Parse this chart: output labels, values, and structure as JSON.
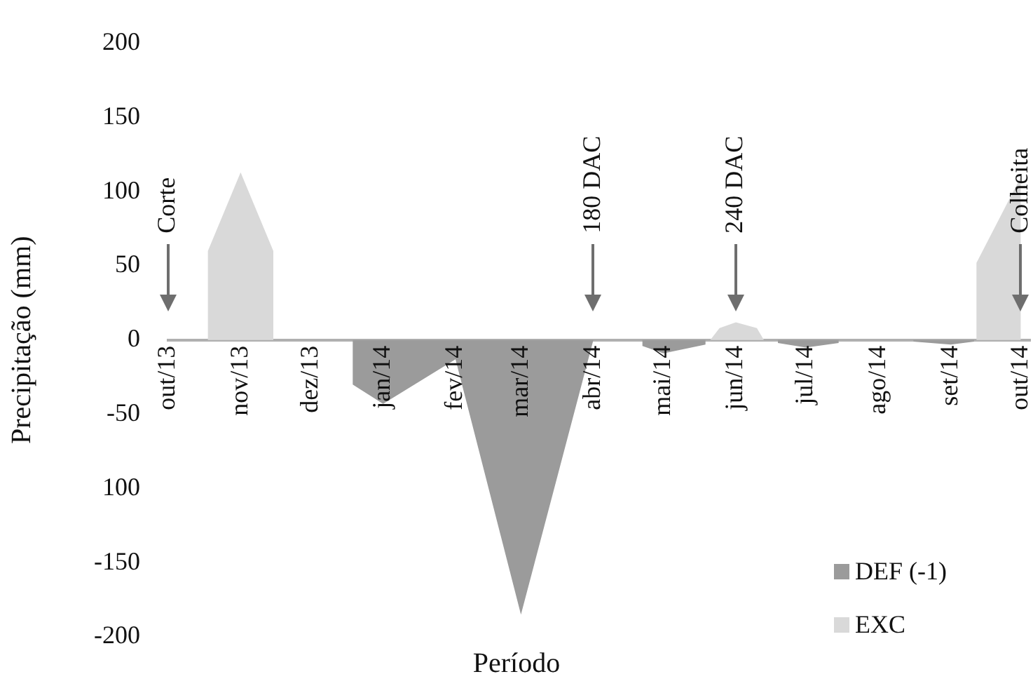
{
  "chart_data": {
    "type": "area",
    "xlabel": "Período",
    "ylabel": "Precipitação (mm)",
    "xlim": [
      "2013-10-01",
      "2014-10-05"
    ],
    "xticks": [
      {
        "value": "2013-10-01",
        "label": "out/13"
      },
      {
        "value": "2013-11-01",
        "label": "nov/13"
      },
      {
        "value": "2013-12-01",
        "label": "dez/13"
      },
      {
        "value": "2014-01-01",
        "label": "jan/14"
      },
      {
        "value": "2014-02-01",
        "label": "fev/14"
      },
      {
        "value": "2014-03-01",
        "label": "mar/14"
      },
      {
        "value": "2014-04-01",
        "label": "abr/14"
      },
      {
        "value": "2014-05-01",
        "label": "mai/14"
      },
      {
        "value": "2014-06-01",
        "label": "jun/14"
      },
      {
        "value": "2014-07-01",
        "label": "jul/14"
      },
      {
        "value": "2014-08-01",
        "label": "ago/14"
      },
      {
        "value": "2014-09-01",
        "label": "set/14"
      },
      {
        "value": "2014-10-01",
        "label": "out/14"
      }
    ],
    "ylim": [
      -200,
      200
    ],
    "yticks": [
      {
        "value": -200,
        "label": "-200"
      },
      {
        "value": -150,
        "label": "-150"
      },
      {
        "value": -100,
        "label": "100"
      },
      {
        "value": -50,
        "label": "-50"
      },
      0,
      50,
      100,
      150,
      200
    ],
    "grid": false,
    "legend": "bottom right",
    "series": [
      {
        "name": "DEF (-1)",
        "color": "#9b9b9b",
        "x": [
          "2013-10-01",
          "2013-12-19",
          "2013-12-19",
          "2014-01-01",
          "2014-02-01",
          "2014-03-01",
          "2014-04-01",
          "2014-04-22",
          "2014-04-22",
          "2014-05-01",
          "2014-05-19",
          "2014-05-19",
          "2014-06-19",
          "2014-06-19",
          "2014-07-01",
          "2014-07-15",
          "2014-07-15",
          "2014-08-16",
          "2014-08-16",
          "2014-09-01",
          "2014-09-11",
          "2014-09-11",
          "2014-10-01"
        ],
        "values": [
          0,
          0,
          -30,
          -43,
          -13,
          -185,
          0,
          0,
          -4,
          -9,
          -3,
          0,
          0,
          -2,
          -5,
          -2,
          0,
          0,
          -1,
          -3,
          -1,
          0,
          0
        ]
      },
      {
        "name": "EXC",
        "color": "#d9d9d9",
        "x": [
          "2013-10-01",
          "2013-10-18",
          "2013-10-18",
          "2013-11-01",
          "2013-11-15",
          "2013-11-15",
          "2014-05-21",
          "2014-05-25",
          "2014-06-01",
          "2014-06-10",
          "2014-06-13",
          "2014-09-12",
          "2014-09-12",
          "2014-10-01"
        ],
        "values": [
          0,
          0,
          60,
          113,
          60,
          0,
          0,
          8,
          12,
          8,
          0,
          0,
          52,
          110
        ]
      }
    ],
    "annotations": [
      {
        "text": "Corte",
        "x": "2013-10-01"
      },
      {
        "text": "180 DAC",
        "x": "2014-04-01"
      },
      {
        "text": "240 DAC",
        "x": "2014-06-01"
      },
      {
        "text": "Colheita",
        "x": "2014-10-01"
      }
    ]
  }
}
